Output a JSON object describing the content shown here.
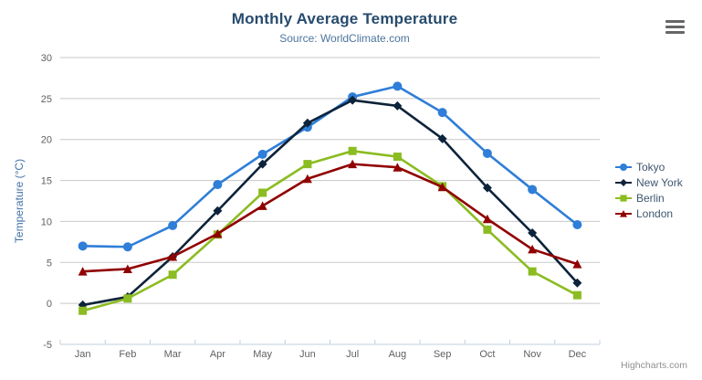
{
  "header": {
    "title": "Monthly Average Temperature",
    "subtitle": "Source: WorldClimate.com"
  },
  "toolbar": {
    "context_menu_icon": "hamburger-menu"
  },
  "credits": {
    "label": "Highcharts.com"
  },
  "chart_data": {
    "type": "line",
    "title": "Monthly Average Temperature",
    "subtitle": "Source: WorldClimate.com",
    "xlabel": "",
    "ylabel": "Temperature (°C)",
    "ylim": [
      -5,
      30
    ],
    "ytick_step": 5,
    "grid": true,
    "legend_position": "right-middle",
    "categories": [
      "Jan",
      "Feb",
      "Mar",
      "Apr",
      "May",
      "Jun",
      "Jul",
      "Aug",
      "Sep",
      "Oct",
      "Nov",
      "Dec"
    ],
    "series": [
      {
        "name": "Tokyo",
        "color": "#2f7ed8",
        "marker": "circle",
        "values": [
          7.0,
          6.9,
          9.5,
          14.5,
          18.2,
          21.5,
          25.2,
          26.5,
          23.3,
          18.3,
          13.9,
          9.6
        ]
      },
      {
        "name": "New York",
        "color": "#0d233a",
        "marker": "diamond",
        "values": [
          -0.2,
          0.8,
          5.7,
          11.3,
          17.0,
          22.0,
          24.8,
          24.1,
          20.1,
          14.1,
          8.6,
          2.5
        ]
      },
      {
        "name": "Berlin",
        "color": "#8bbc21",
        "marker": "square",
        "values": [
          -0.9,
          0.6,
          3.5,
          8.4,
          13.5,
          17.0,
          18.6,
          17.9,
          14.3,
          9.0,
          3.9,
          1.0
        ]
      },
      {
        "name": "London",
        "color": "#910000",
        "marker": "triangle",
        "values": [
          3.9,
          4.2,
          5.7,
          8.5,
          11.9,
          15.2,
          17.0,
          16.6,
          14.2,
          10.3,
          6.6,
          4.8
        ]
      }
    ],
    "colors": {
      "grid": "#c8c8c8",
      "axis_line": "#c0d0e0",
      "tick_label": "#606060",
      "title": "#274b6d",
      "subtitle": "#4d759e",
      "axis_title": "#4572a7",
      "legend_text": "#3e576f",
      "credits": "#909090"
    }
  }
}
